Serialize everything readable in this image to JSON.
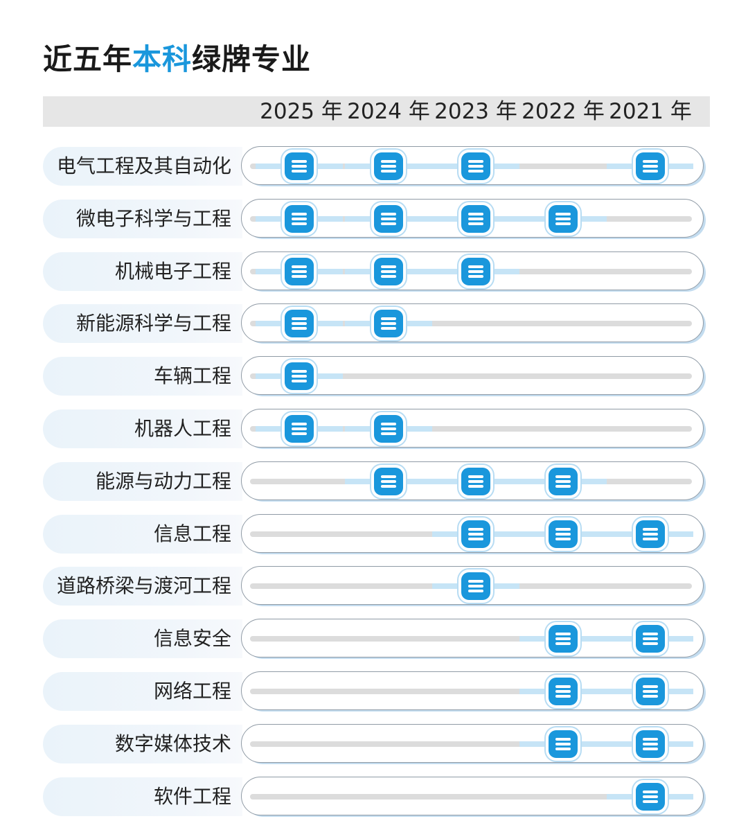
{
  "title": {
    "prefix": "近五年",
    "highlight": "本科",
    "suffix": "绿牌专业"
  },
  "colors": {
    "accent": "#1a97dc",
    "track": "#dcdcdc",
    "active_track": "#c6e4f6",
    "header_band": "#e6e6e6"
  },
  "marker_icon": "list-badge-icon",
  "years": [
    "2025 年",
    "2024 年",
    "2023 年",
    "2022 年",
    "2021 年"
  ],
  "majors": [
    {
      "name": "电气工程及其自动化",
      "green": [
        true,
        true,
        true,
        false,
        true
      ]
    },
    {
      "name": "微电子科学与工程",
      "green": [
        true,
        true,
        true,
        true,
        false
      ]
    },
    {
      "name": "机械电子工程",
      "green": [
        true,
        true,
        true,
        false,
        false
      ]
    },
    {
      "name": "新能源科学与工程",
      "green": [
        true,
        true,
        false,
        false,
        false
      ]
    },
    {
      "name": "车辆工程",
      "green": [
        true,
        false,
        false,
        false,
        false
      ]
    },
    {
      "name": "机器人工程",
      "green": [
        true,
        true,
        false,
        false,
        false
      ]
    },
    {
      "name": "能源与动力工程",
      "green": [
        false,
        true,
        true,
        true,
        false
      ]
    },
    {
      "name": "信息工程",
      "green": [
        false,
        false,
        true,
        true,
        true
      ]
    },
    {
      "name": "道路桥梁与渡河工程",
      "green": [
        false,
        false,
        true,
        false,
        false
      ]
    },
    {
      "name": "信息安全",
      "green": [
        false,
        false,
        false,
        true,
        true
      ]
    },
    {
      "name": "网络工程",
      "green": [
        false,
        false,
        false,
        true,
        true
      ]
    },
    {
      "name": "数字媒体技术",
      "green": [
        false,
        false,
        false,
        true,
        true
      ]
    },
    {
      "name": "软件工程",
      "green": [
        false,
        false,
        false,
        false,
        true
      ]
    }
  ]
}
